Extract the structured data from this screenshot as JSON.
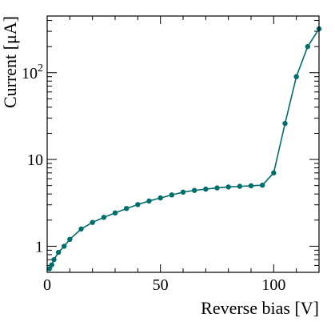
{
  "chart_data": {
    "type": "line",
    "title": "",
    "xlabel": "Reverse bias [V]",
    "ylabel": "Current [μA]",
    "x_scale": "linear",
    "y_scale": "log",
    "xlim": [
      0,
      120
    ],
    "ylim": [
      0.5,
      450
    ],
    "grid": false,
    "legend": "none",
    "x_ticks": [
      {
        "value": 0,
        "label": "0"
      },
      {
        "value": 50,
        "label": "50"
      },
      {
        "value": 100,
        "label": "100"
      }
    ],
    "y_ticks": [
      {
        "value": 1,
        "label": "1",
        "exp": ""
      },
      {
        "value": 10,
        "label": "10",
        "exp": ""
      },
      {
        "value": 100,
        "label": "10",
        "exp": "2"
      }
    ],
    "series": [
      {
        "color": "#006d6d",
        "x": [
          1,
          2,
          3,
          5,
          7.5,
          10,
          15,
          20,
          25,
          30,
          35,
          40,
          45,
          50,
          55,
          60,
          65,
          70,
          75,
          80,
          85,
          90,
          95,
          100,
          105,
          110,
          115,
          120
        ],
        "y": [
          0.55,
          0.61,
          0.7,
          0.85,
          1.0,
          1.2,
          1.58,
          1.88,
          2.15,
          2.42,
          2.72,
          3.02,
          3.32,
          3.6,
          3.9,
          4.2,
          4.4,
          4.55,
          4.7,
          4.82,
          4.9,
          4.97,
          5.05,
          7.0,
          26,
          90,
          200,
          320
        ]
      }
    ]
  }
}
